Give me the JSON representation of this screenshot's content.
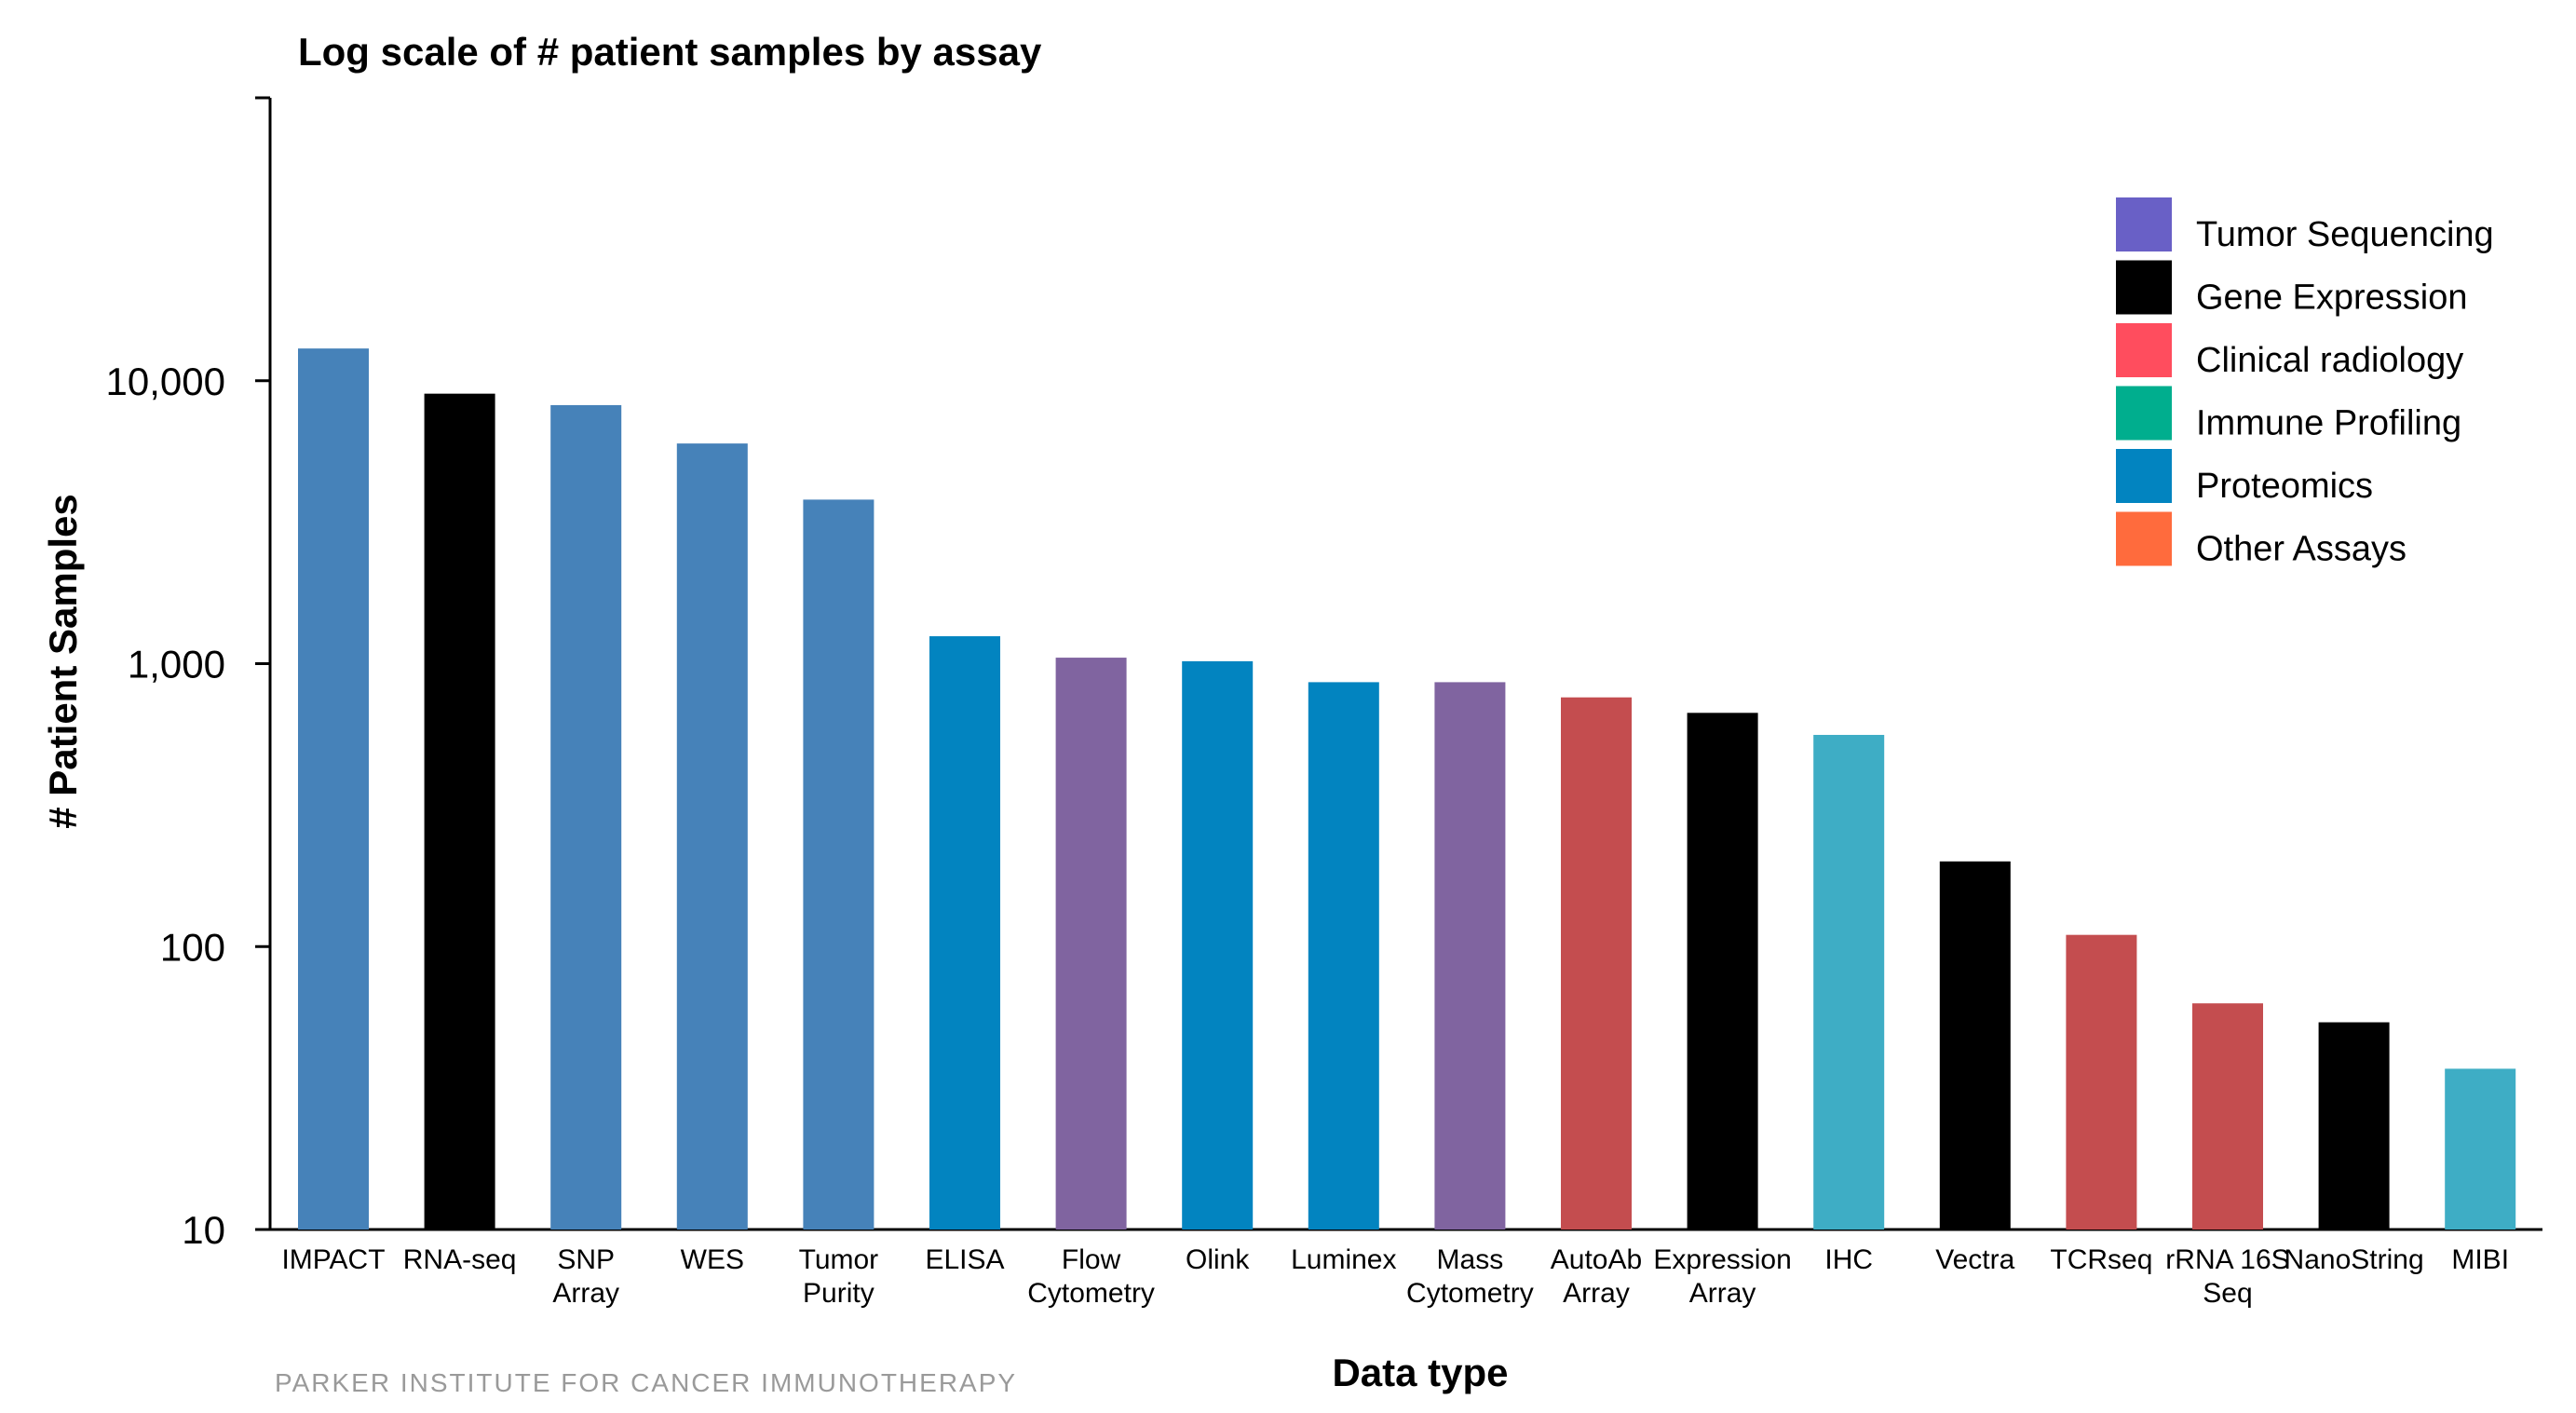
{
  "chart_data": {
    "type": "bar",
    "title": "Log scale of # patient samples by assay",
    "xlabel": "Data type",
    "ylabel": "# Patient Samples",
    "yscale": "log",
    "ylim": [
      10,
      100000
    ],
    "yticks": [
      10,
      100,
      1000,
      10000
    ],
    "ytick_labels": [
      "10",
      "100",
      "1,000",
      "10,000"
    ],
    "grid": false,
    "legend_position": "top-right",
    "categories": [
      [
        "IMPACT"
      ],
      [
        "RNA-seq"
      ],
      [
        "SNP",
        "Array"
      ],
      [
        "WES"
      ],
      [
        "Tumor",
        "Purity"
      ],
      [
        "ELISA"
      ],
      [
        "Flow",
        "Cytometry"
      ],
      [
        "Olink"
      ],
      [
        "Luminex"
      ],
      [
        "Mass",
        "Cytometry"
      ],
      [
        "AutoAb",
        "Array"
      ],
      [
        "Expression",
        "Array"
      ],
      [
        "IHC"
      ],
      [
        "Vectra"
      ],
      [
        "TCRseq"
      ],
      [
        "rRNA 16S",
        "Seq"
      ],
      [
        "NanoString"
      ],
      [
        "MIBI"
      ]
    ],
    "values": [
      13000,
      9000,
      8200,
      6000,
      3800,
      1250,
      1050,
      1020,
      860,
      860,
      760,
      670,
      560,
      200,
      110,
      63,
      54,
      37
    ],
    "bar_colors": [
      "#4682B9",
      "#000000",
      "#4682B9",
      "#4682B9",
      "#4682B9",
      "#0284C0",
      "#8064A0",
      "#0284C0",
      "#0284C0",
      "#8064A0",
      "#C44D4F",
      "#000000",
      "#3EADC5",
      "#000000",
      "#C44D4F",
      "#C44D4F",
      "#000000",
      "#3EADC5"
    ],
    "legend": [
      {
        "label": "Tumor Sequencing",
        "color": "#6960C6"
      },
      {
        "label": "Gene Expression",
        "color": "#000000"
      },
      {
        "label": "Clinical radiology",
        "color": "#FF4D5E"
      },
      {
        "label": "Immune Profiling",
        "color": "#00AE8E"
      },
      {
        "label": "Proteomics",
        "color": "#0284C0"
      },
      {
        "label": "Other Assays",
        "color": "#FF6B3D"
      }
    ]
  },
  "footer": "PARKER INSTITUTE FOR CANCER IMMUNOTHERAPY"
}
